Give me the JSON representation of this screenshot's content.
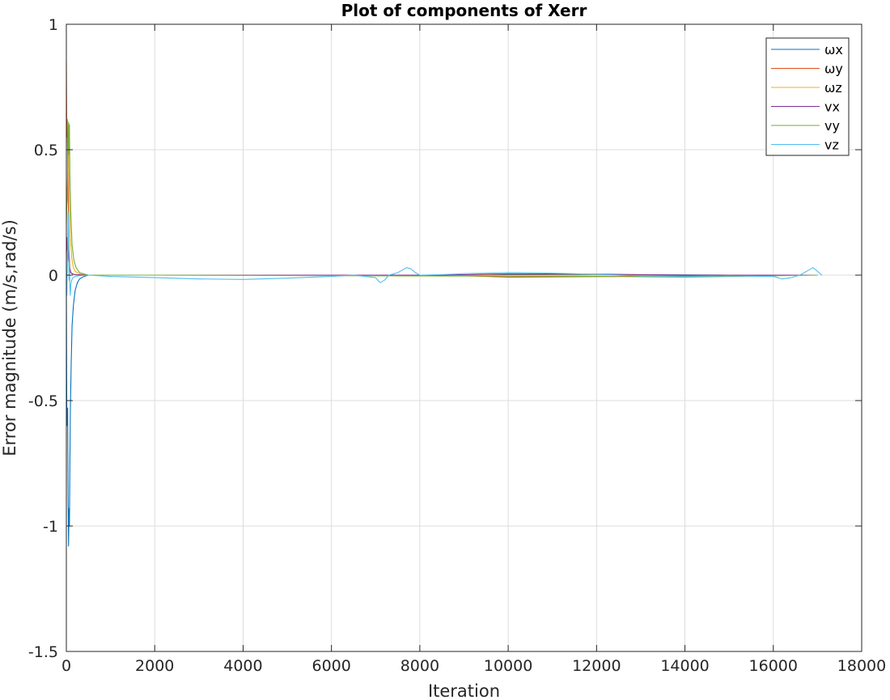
{
  "chart_data": {
    "type": "line",
    "title": "Plot of components of Xerr",
    "xlabel": "Iteration",
    "ylabel": "Error magnitude (m/s,rad/s)",
    "xlim": [
      0,
      18000
    ],
    "ylim": [
      -1.5,
      1
    ],
    "xticks": [
      0,
      2000,
      4000,
      6000,
      8000,
      10000,
      12000,
      14000,
      16000,
      18000
    ],
    "yticks": [
      -1.5,
      -1,
      -0.5,
      0,
      0.5,
      1
    ],
    "ytick_labels": [
      "-1.5",
      "-1",
      "-0.5",
      "0",
      "0.5",
      "1"
    ],
    "grid": true,
    "legend_position": "top-right",
    "series": [
      {
        "name": "ωx",
        "color": "#0072BD",
        "x": [
          0,
          10,
          20,
          30,
          40,
          50,
          60,
          70,
          80,
          90,
          110,
          130,
          160,
          200,
          250,
          300,
          400,
          500,
          2000,
          4000,
          6000,
          8500,
          10000,
          12000,
          15000,
          17000
        ],
        "y": [
          -0.05,
          -0.55,
          -0.6,
          -0.53,
          -0.9,
          -1.08,
          -0.93,
          -1.0,
          -0.75,
          -0.55,
          -0.35,
          -0.2,
          -0.12,
          -0.06,
          -0.03,
          -0.015,
          -0.005,
          0,
          0,
          0,
          0,
          0,
          0.002,
          0.002,
          0,
          0
        ]
      },
      {
        "name": "ωy",
        "color": "#D95319",
        "x": [
          0,
          10,
          20,
          30,
          40,
          50,
          60,
          80,
          100,
          150,
          200,
          300,
          500,
          2000,
          8500,
          10000,
          12000,
          15000,
          17000
        ],
        "y": [
          0.85,
          0.55,
          0.62,
          0.45,
          0.35,
          0.2,
          0.1,
          0.03,
          0.01,
          0.004,
          0.002,
          0.001,
          0,
          0,
          0,
          -0.008,
          -0.006,
          0,
          0
        ]
      },
      {
        "name": "ωz",
        "color": "#EDB120",
        "x": [
          0,
          10,
          20,
          30,
          40,
          50,
          60,
          70,
          90,
          120,
          160,
          200,
          300,
          500,
          2000,
          17000
        ],
        "y": [
          0.25,
          0.35,
          0.3,
          0.45,
          0.55,
          0.5,
          0.4,
          0.3,
          0.15,
          0.07,
          0.03,
          0.015,
          0.005,
          0,
          0,
          0
        ]
      },
      {
        "name": "vx",
        "color": "#7E2F8E",
        "x": [
          0,
          10,
          20,
          30,
          40,
          50,
          70,
          100,
          150,
          200,
          300,
          500,
          2000,
          8500,
          10000,
          12000,
          14000,
          17000
        ],
        "y": [
          0.05,
          0.15,
          0.1,
          0.12,
          0.08,
          0.06,
          0.03,
          0.01,
          0.004,
          0.002,
          0.001,
          0,
          0,
          0,
          0.005,
          0.004,
          0,
          0
        ]
      },
      {
        "name": "vy",
        "color": "#77AC30",
        "x": [
          0,
          10,
          20,
          30,
          40,
          50,
          60,
          70,
          80,
          100,
          130,
          170,
          220,
          300,
          500,
          2000,
          12000,
          14000,
          17000
        ],
        "y": [
          0.2,
          0.28,
          0.3,
          0.4,
          0.55,
          0.61,
          0.48,
          0.6,
          0.4,
          0.25,
          0.12,
          0.06,
          0.03,
          0.01,
          0,
          0,
          -0.005,
          -0.008,
          0
        ]
      },
      {
        "name": "vz",
        "color": "#4DBEEE",
        "x": [
          0,
          10,
          20,
          30,
          40,
          50,
          60,
          70,
          80,
          90,
          100,
          120,
          150,
          200,
          300,
          500,
          1000,
          2000,
          3000,
          4000,
          5000,
          6000,
          6500,
          7000,
          7100,
          7200,
          7300,
          7400,
          7500,
          7600,
          7700,
          7800,
          7900,
          8000,
          8500,
          9000,
          10000,
          11000,
          12000,
          13000,
          14000,
          15000,
          16000,
          16200,
          16400,
          16600,
          16800,
          16900,
          17000,
          17100
        ],
        "y": [
          -0.05,
          -0.08,
          0.02,
          0.1,
          0.25,
          0.15,
          -0.02,
          0.05,
          -0.05,
          -0.08,
          -0.04,
          -0.02,
          -0.01,
          -0.005,
          -0.002,
          0,
          -0.005,
          -0.01,
          -0.015,
          -0.017,
          -0.012,
          -0.005,
          0,
          -0.01,
          -0.03,
          -0.02,
          0,
          0.005,
          0.01,
          0.02,
          0.03,
          0.025,
          0.01,
          0,
          0.002,
          0.006,
          0.01,
          0.008,
          0.003,
          -0.003,
          -0.005,
          -0.003,
          -0.005,
          -0.015,
          -0.01,
          0,
          0.02,
          0.03,
          0.015,
          0
        ]
      }
    ]
  }
}
